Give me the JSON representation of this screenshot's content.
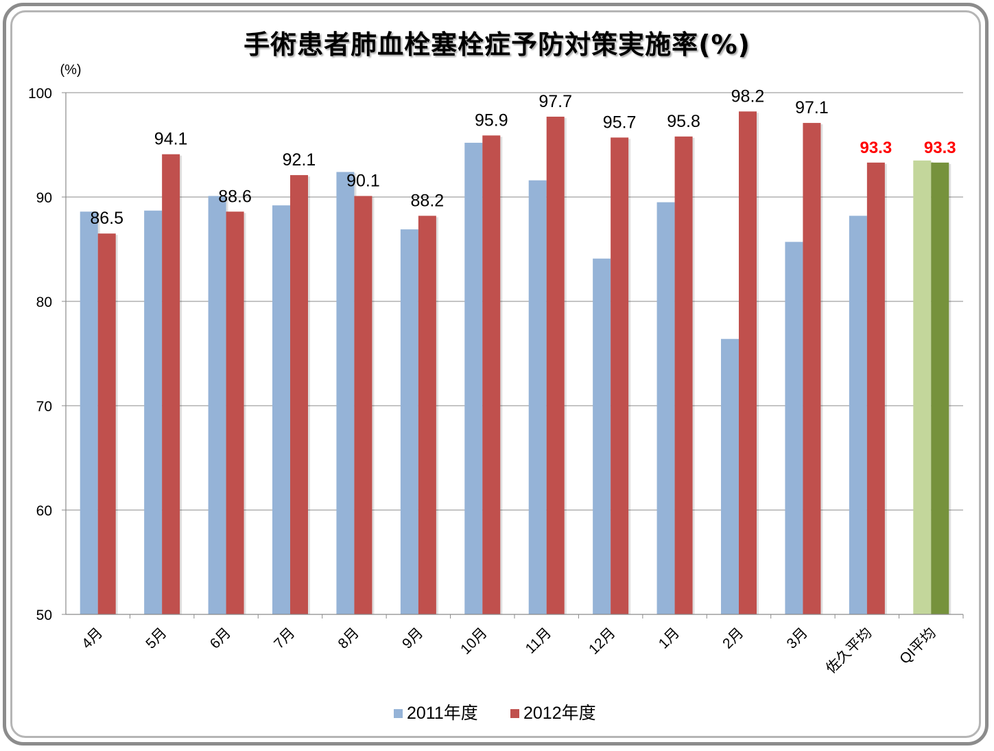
{
  "chart_data": {
    "type": "bar",
    "title": "手術患者肺血栓塞栓症予防対策実施率(%)",
    "ylabel": "(%)",
    "xlabel": "",
    "ylim": [
      50,
      100
    ],
    "yticks": [
      50,
      60,
      70,
      80,
      90,
      100
    ],
    "grid": true,
    "legend_position": "bottom",
    "categories": [
      "4月",
      "5月",
      "6月",
      "7月",
      "8月",
      "9月",
      "10月",
      "11月",
      "12月",
      "1月",
      "2月",
      "3月",
      "佐久平均",
      "QI平均"
    ],
    "series": [
      {
        "name": "2011年度",
        "color": "#95b3d7",
        "values": [
          88.6,
          88.7,
          90.1,
          89.2,
          92.4,
          86.9,
          95.2,
          91.6,
          84.1,
          89.5,
          76.4,
          85.7,
          88.2,
          93.5
        ],
        "highlight_colors": {
          "13": "#c3d69b"
        }
      },
      {
        "name": "2012年度",
        "color": "#c0504d",
        "values": [
          86.5,
          94.1,
          88.6,
          92.1,
          90.1,
          88.2,
          95.9,
          97.7,
          95.7,
          95.8,
          98.2,
          97.1,
          93.3,
          93.3
        ],
        "data_labels": [
          "86.5",
          "94.1",
          "88.6",
          "92.1",
          "90.1",
          "88.2",
          "95.9",
          "97.7",
          "95.7",
          "95.8",
          "98.2",
          "97.1",
          "93.3",
          "93.3"
        ],
        "highlight_colors": {
          "13": "#76923c"
        }
      }
    ],
    "emphasized_label_color": "#ff0000",
    "emphasized_label_indices": [
      12,
      13
    ]
  }
}
